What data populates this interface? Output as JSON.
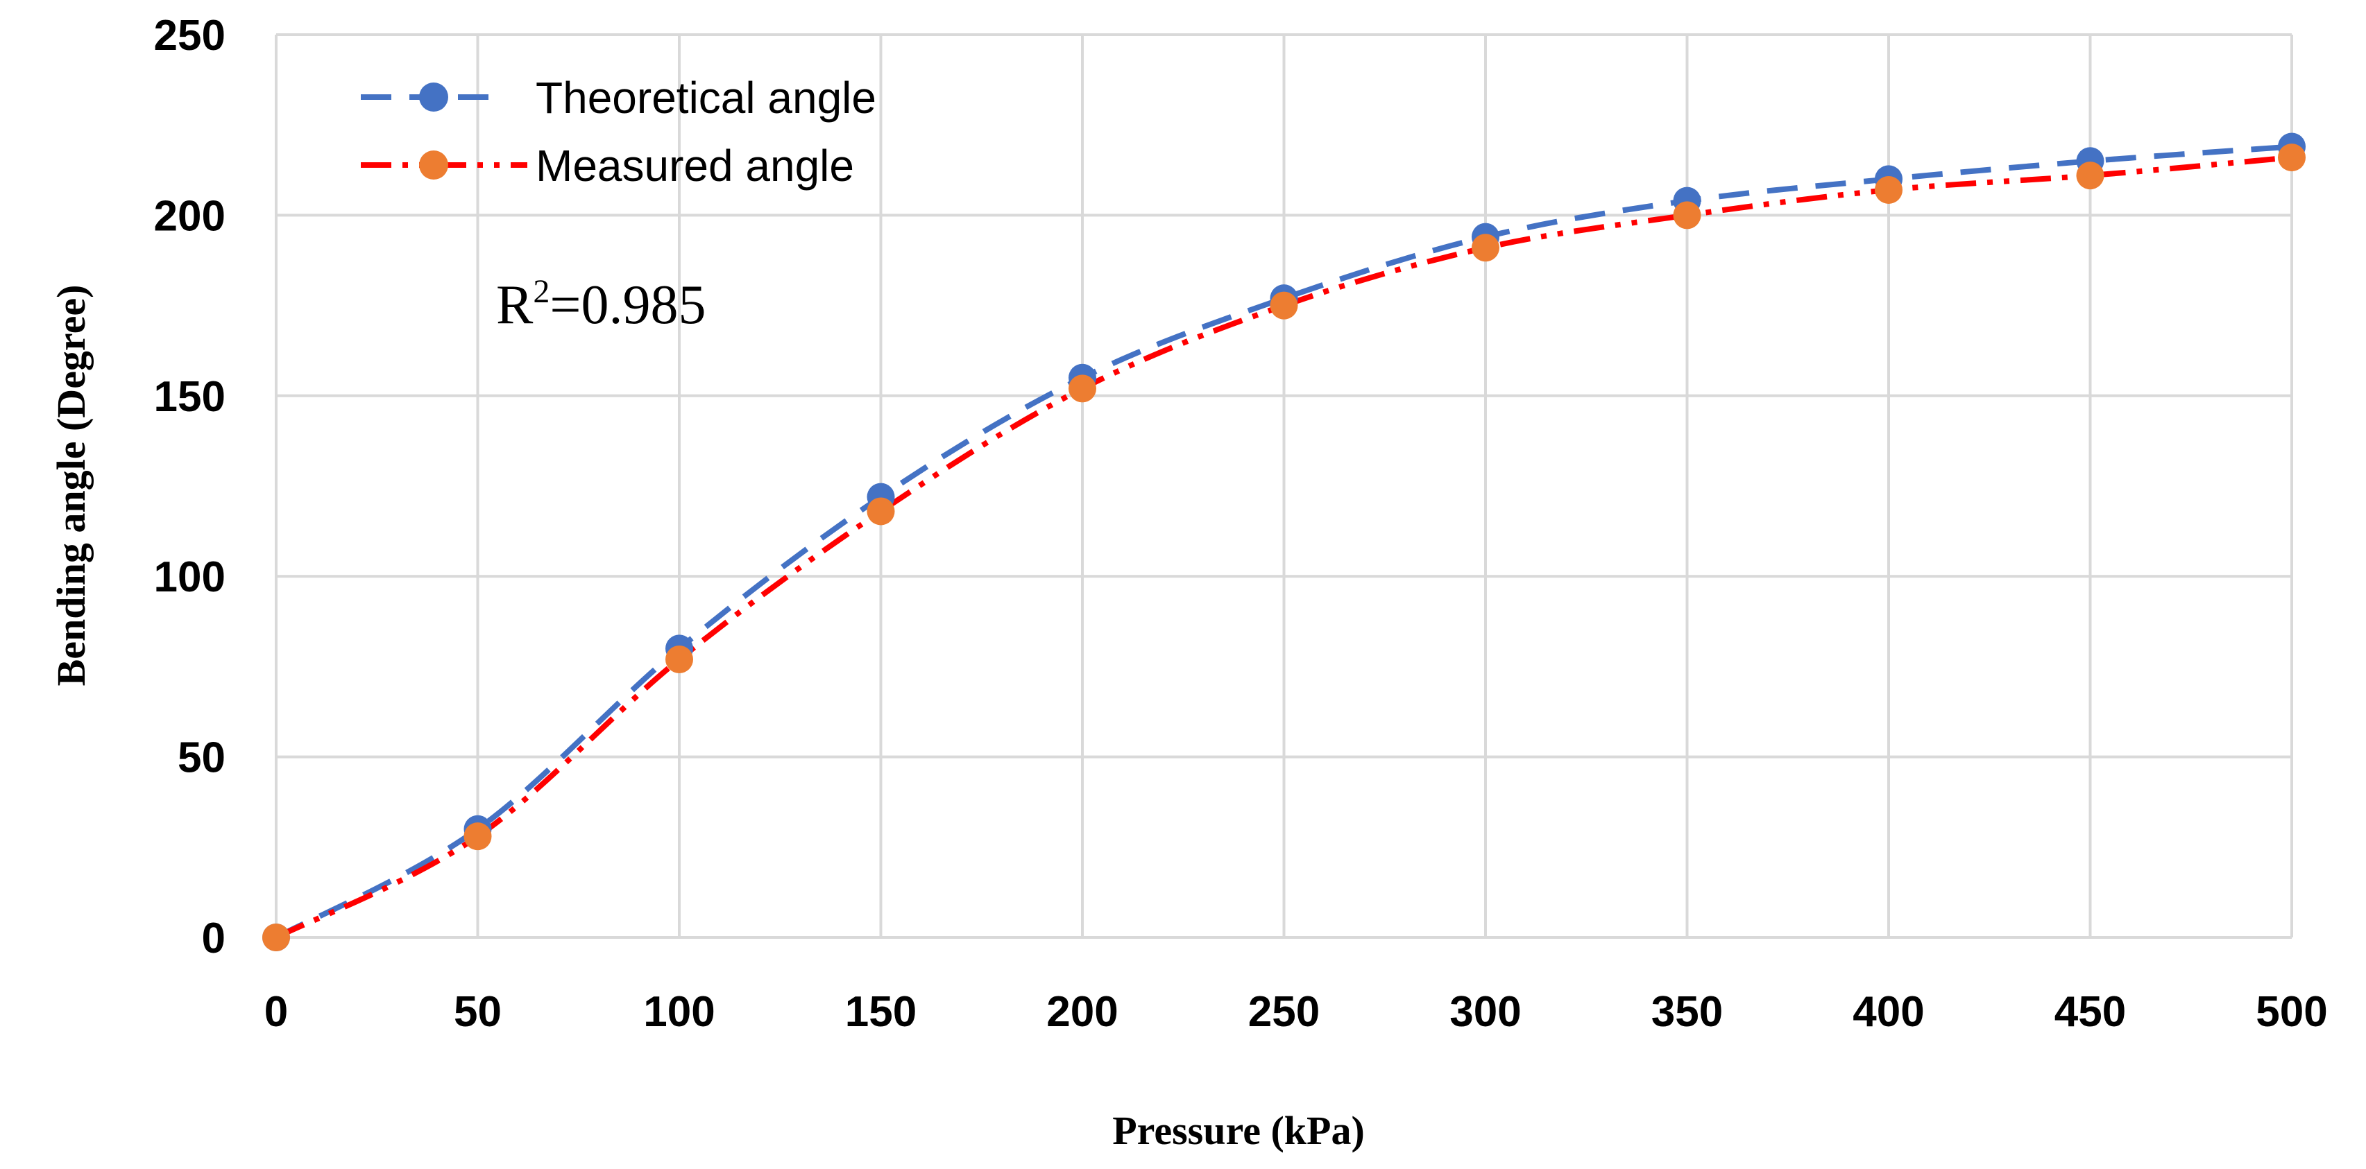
{
  "chart_data": {
    "type": "line",
    "title": "",
    "xlabel": "Pressure (kPa)",
    "ylabel": "Bending angle (Degree)",
    "xlim": [
      0,
      500
    ],
    "ylim": [
      0,
      250
    ],
    "x_ticks": [
      0,
      50,
      100,
      150,
      200,
      250,
      300,
      350,
      400,
      450,
      500
    ],
    "y_ticks": [
      0,
      50,
      100,
      150,
      200,
      250
    ],
    "grid": true,
    "legend_position": "top-left",
    "x": [
      0,
      50,
      100,
      150,
      200,
      250,
      300,
      350,
      400,
      450,
      500
    ],
    "series": [
      {
        "name": "Theoretical angle",
        "values": [
          0,
          30,
          80,
          122,
          155,
          177,
          194,
          204,
          210,
          215,
          219
        ],
        "line_color": "#4472C4",
        "marker_color": "#4472C4",
        "line_style": "dashed"
      },
      {
        "name": "Measured angle",
        "values": [
          0,
          28,
          77,
          118,
          152,
          175,
          191,
          200,
          207,
          211,
          216
        ],
        "line_color": "#FF0000",
        "marker_color": "#ED7D31",
        "line_style": "dash-dot-dot"
      }
    ],
    "annotations": [
      {
        "text_base": "R",
        "text_sup": "2",
        "text_rest": "=0.985"
      }
    ],
    "colors": {
      "grid": "#D9D9D9",
      "axis": "#D9D9D9"
    }
  }
}
